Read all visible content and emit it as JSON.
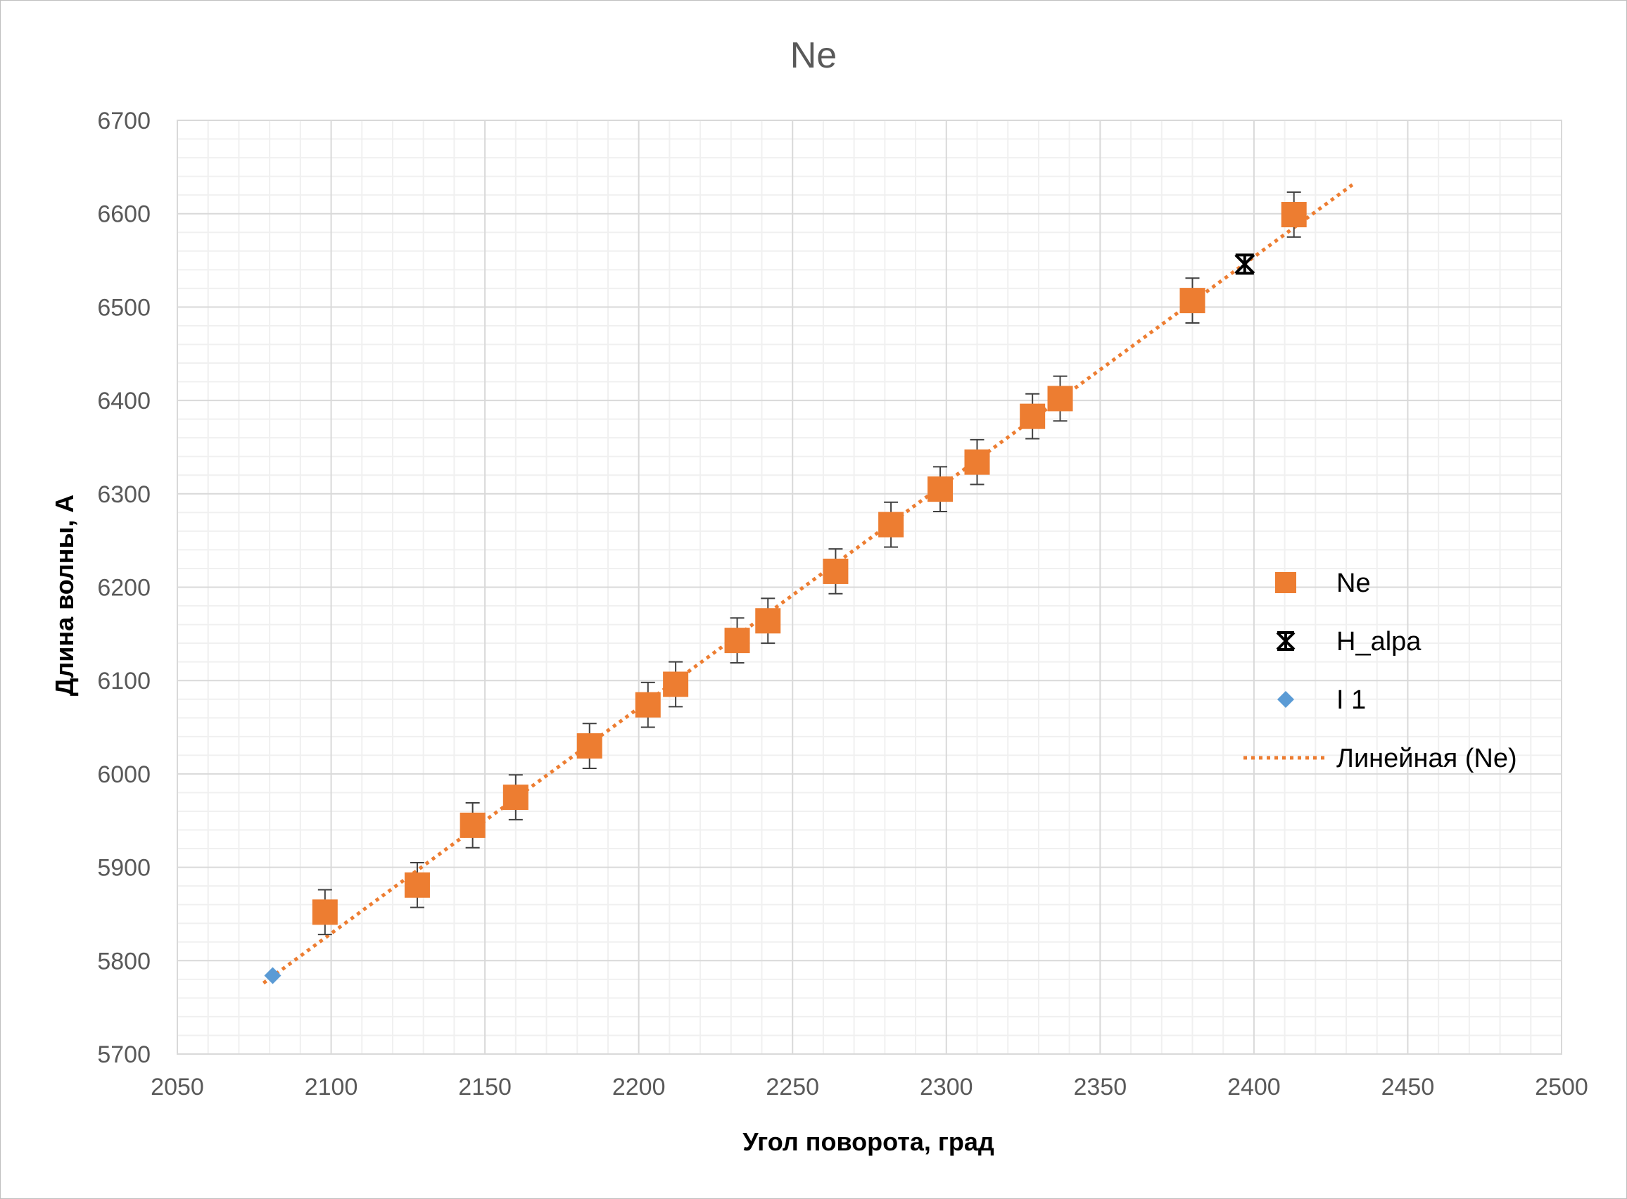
{
  "chart_data": {
    "type": "scatter",
    "title": "Ne",
    "xlabel": "Угол поворота, град",
    "ylabel": "Длина волны, А",
    "xlim": [
      2050,
      2500
    ],
    "ylim": [
      5700,
      6700
    ],
    "x_major_step": 50,
    "y_major_step": 100,
    "x_minor_step": 10,
    "y_minor_step": 20,
    "grid": true,
    "legend_position": "right",
    "x_ticks": [
      "2050",
      "2100",
      "2150",
      "2200",
      "2250",
      "2300",
      "2350",
      "2400",
      "2450",
      "2500"
    ],
    "y_ticks": [
      "5700",
      "5800",
      "5900",
      "6000",
      "6100",
      "6200",
      "6300",
      "6400",
      "6500",
      "6600",
      "6700"
    ],
    "series": [
      {
        "name": "Ne",
        "marker": "square",
        "color": "#ED7D31",
        "error_y": 24,
        "x": [
          2098,
          2128,
          2146,
          2160,
          2184,
          2203,
          2212,
          2232,
          2242,
          2264,
          2282,
          2298,
          2310,
          2328,
          2337,
          2380,
          2413
        ],
        "y": [
          5852,
          5881,
          5945,
          5975,
          6030,
          6074,
          6096,
          6143,
          6164,
          6217,
          6267,
          6305,
          6334,
          6383,
          6402,
          6507,
          6599
        ]
      },
      {
        "name": "H_alpa",
        "marker": "asterisk",
        "color": "#000000",
        "x": [
          2397
        ],
        "y": [
          6546
        ]
      },
      {
        "name": "I 1",
        "marker": "diamond",
        "color": "#5B9BD5",
        "x": [
          2081
        ],
        "y": [
          5784
        ]
      }
    ],
    "trendline": {
      "name": "Линейная (Ne)",
      "color": "#ED7D31",
      "style": "dotted",
      "x": [
        2078,
        2432
      ],
      "y": [
        5776,
        6631
      ]
    }
  }
}
